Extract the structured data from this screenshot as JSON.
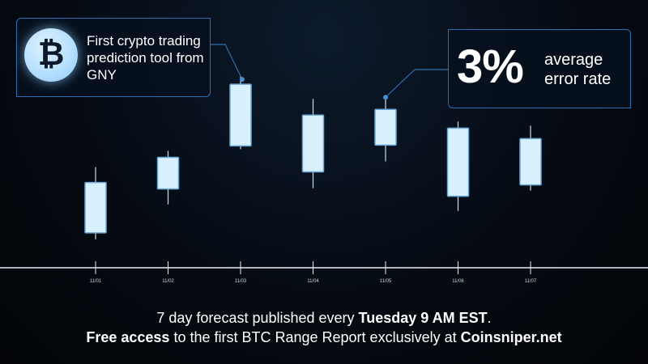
{
  "callout_left": {
    "icon": "bitcoin-icon",
    "text": "First crypto trading prediction tool from GNY"
  },
  "callout_right": {
    "value": "3%",
    "text": "average error rate"
  },
  "footer": {
    "line1_pre": "7 day forecast published every ",
    "line1_bold": "Tuesday 9 AM EST",
    "line1_post": ".",
    "line2_bold1": "Free access",
    "line2_mid": " to the first BTC Range Report exclusively at ",
    "line2_bold2": "Coinsniper.net"
  },
  "colors": {
    "candle_fill": "#d9f0ff",
    "candle_stroke": "#6aa9d9",
    "callout_border": "#2f6fb0",
    "axis": "#e6eef6"
  },
  "chart_data": {
    "type": "candlestick",
    "categories": [
      "11/01",
      "11/02",
      "11/03",
      "11/04",
      "11/05",
      "11/06",
      "11/07"
    ],
    "candles": [
      {
        "x": "11/01",
        "high": 124,
        "box_top": 105,
        "box_bottom": 43,
        "low": 35
      },
      {
        "x": "11/02",
        "high": 144,
        "box_top": 136,
        "box_bottom": 97,
        "low": 78
      },
      {
        "x": "11/03",
        "high": 236,
        "box_top": 226,
        "box_bottom": 150,
        "low": 146
      },
      {
        "x": "11/04",
        "high": 208,
        "box_top": 188,
        "box_bottom": 118,
        "low": 98
      },
      {
        "x": "11/05",
        "high": 210,
        "box_top": 195,
        "box_bottom": 151,
        "low": 131
      },
      {
        "x": "11/06",
        "high": 180,
        "box_top": 172,
        "box_bottom": 88,
        "low": 70
      },
      {
        "x": "11/07",
        "high": 175,
        "box_top": 159,
        "box_bottom": 102,
        "low": 95
      }
    ],
    "ylim": [
      0,
      260
    ],
    "grid": false
  }
}
